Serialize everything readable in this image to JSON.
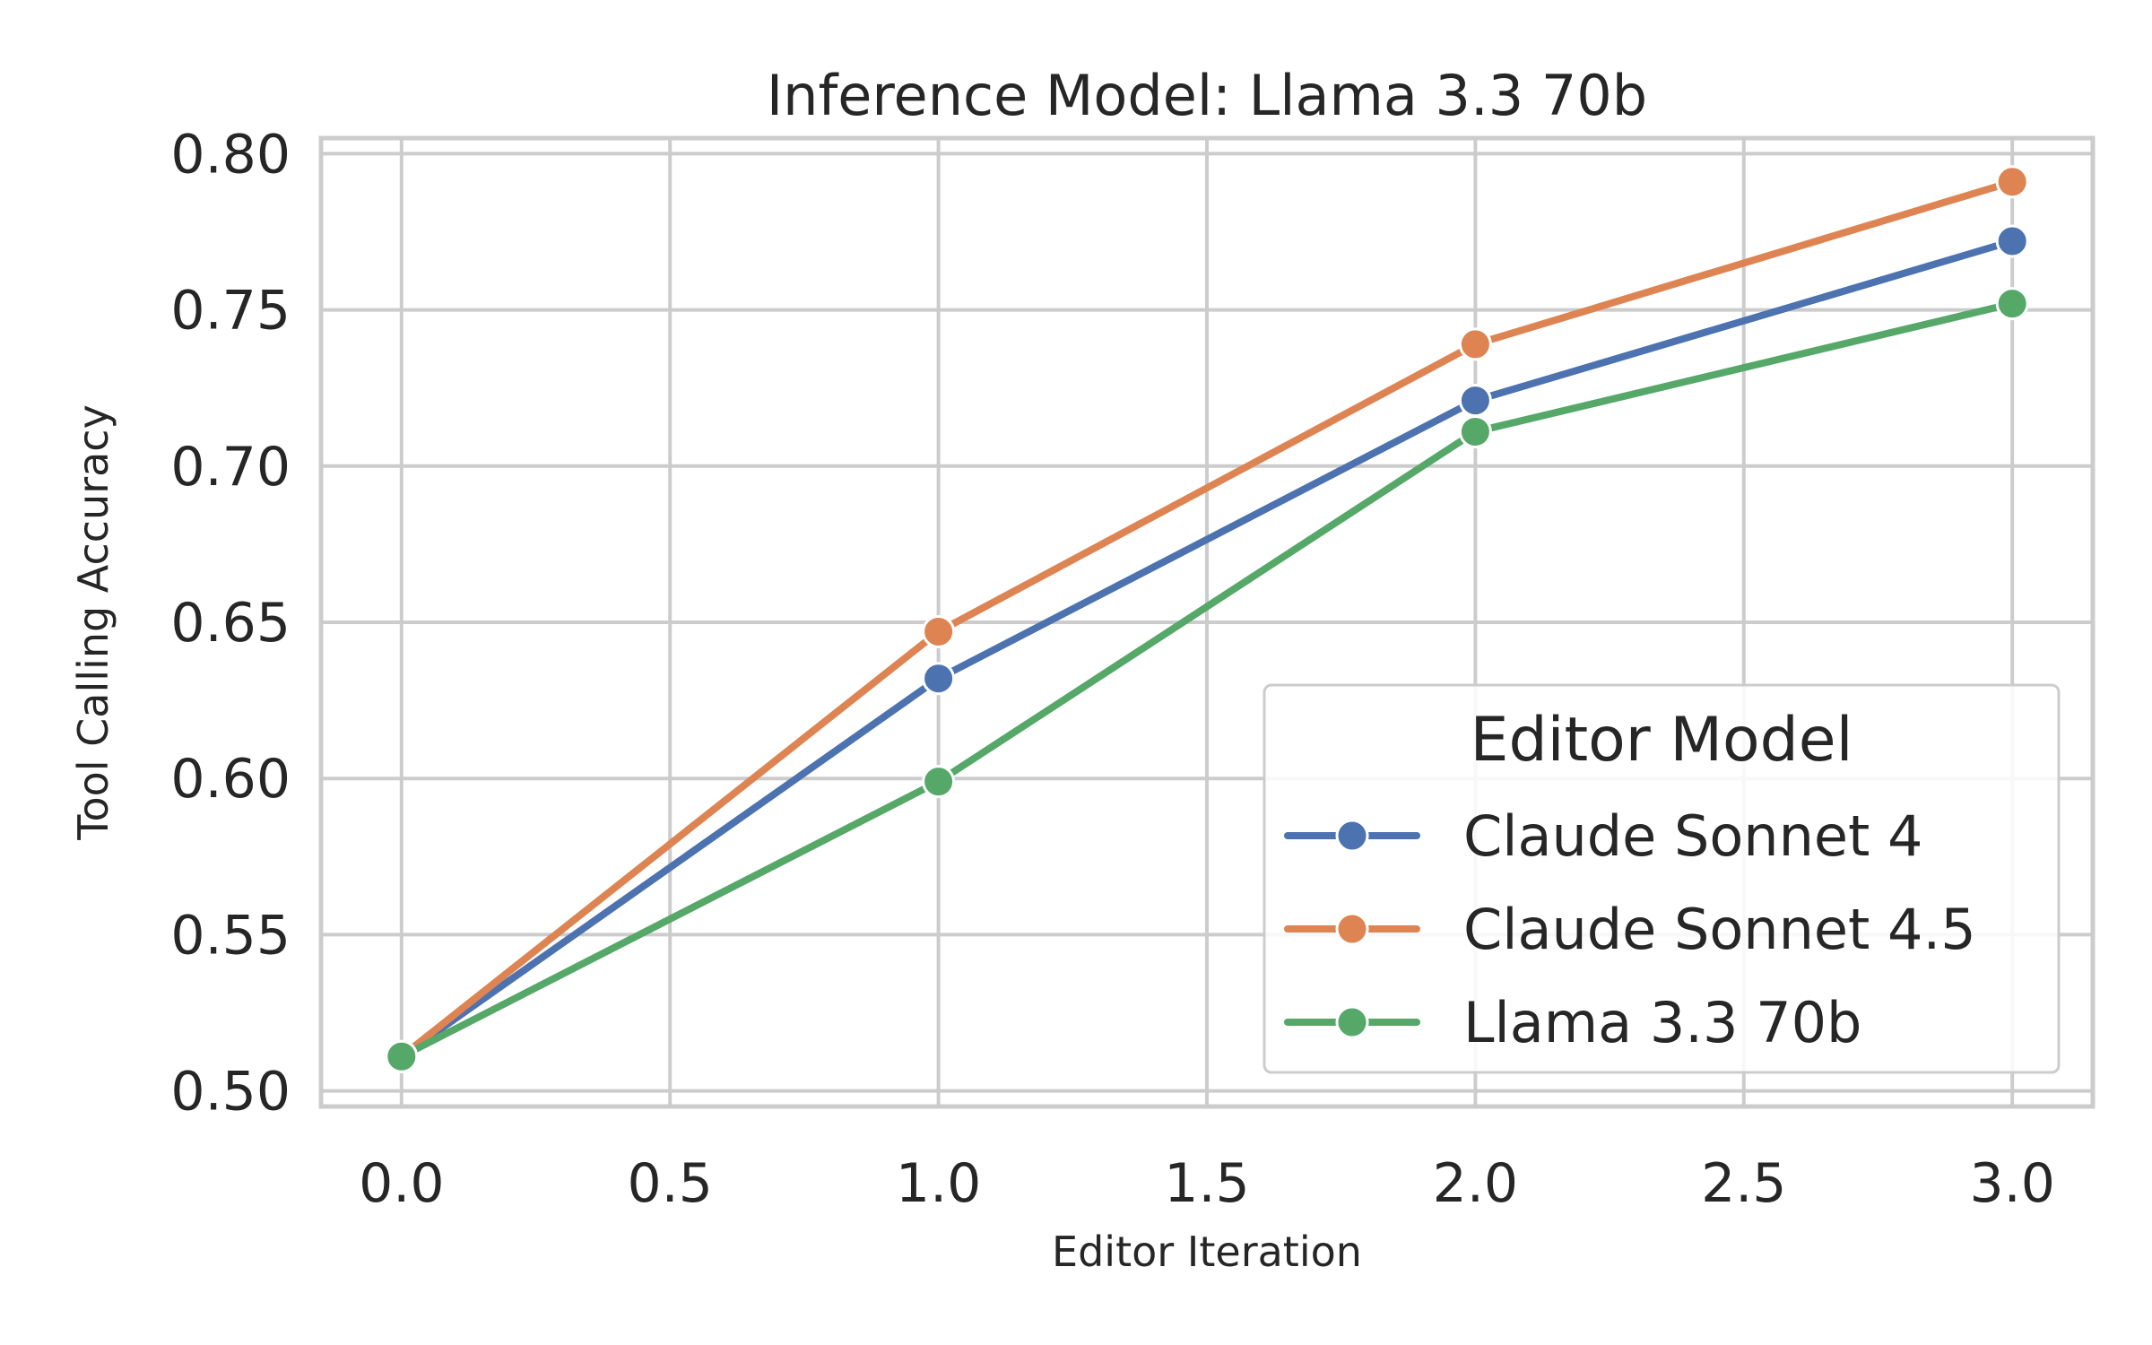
{
  "chart_data": {
    "type": "line",
    "title": "Inference Model: Llama 3.3 70b",
    "xlabel": "Editor Iteration",
    "ylabel": "Tool Calling Accuracy",
    "xlim": [
      -0.15,
      3.15
    ],
    "ylim": [
      0.495,
      0.805
    ],
    "xticks": [
      0.0,
      0.5,
      1.0,
      1.5,
      2.0,
      2.5,
      3.0
    ],
    "xtick_labels": [
      "0.0",
      "0.5",
      "1.0",
      "1.5",
      "2.0",
      "2.5",
      "3.0"
    ],
    "yticks": [
      0.5,
      0.55,
      0.6,
      0.65,
      0.7,
      0.75,
      0.8
    ],
    "ytick_labels": [
      "0.50",
      "0.55",
      "0.60",
      "0.65",
      "0.70",
      "0.75",
      "0.80"
    ],
    "grid": true,
    "legend": {
      "title": "Editor Model",
      "position": "bottom-right"
    },
    "x": [
      0,
      1,
      2,
      3
    ],
    "series": [
      {
        "name": "Claude Sonnet 4",
        "color": "#4c72b0",
        "values": [
          0.511,
          0.632,
          0.721,
          0.772
        ]
      },
      {
        "name": "Claude Sonnet 4.5",
        "color": "#dd8452",
        "values": [
          0.511,
          0.647,
          0.739,
          0.791
        ]
      },
      {
        "name": "Llama 3.3 70b",
        "color": "#55a868",
        "values": [
          0.511,
          0.599,
          0.711,
          0.752
        ]
      }
    ]
  }
}
